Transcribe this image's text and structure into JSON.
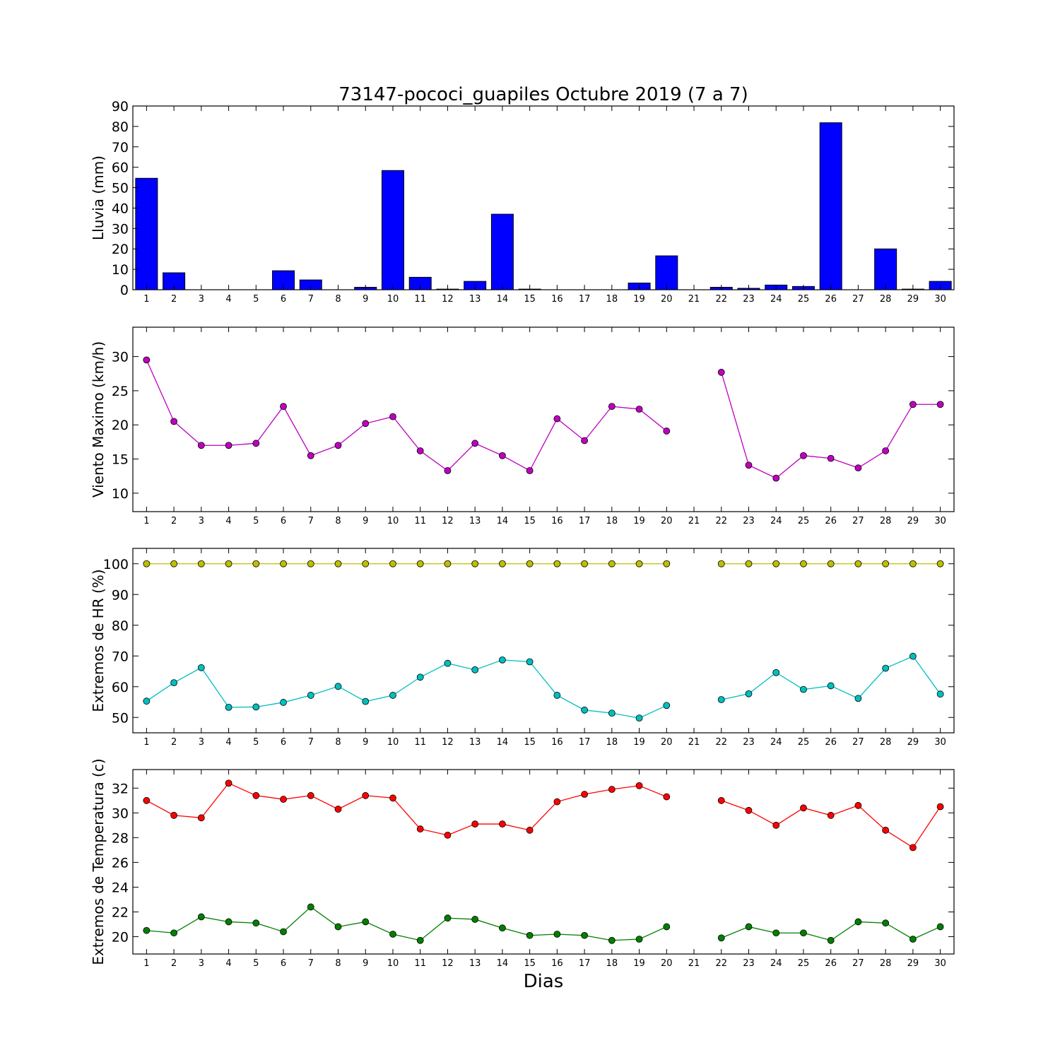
{
  "chart_data": [
    {
      "type": "bar",
      "title": "73147-pococi_guapiles Octubre 2019  (7 a 7)",
      "ylabel": "Lluvia (mm)",
      "xlabel": "",
      "x": [
        1,
        2,
        3,
        4,
        5,
        6,
        7,
        8,
        9,
        10,
        11,
        12,
        13,
        14,
        15,
        16,
        17,
        18,
        19,
        20,
        21,
        22,
        23,
        24,
        25,
        26,
        27,
        28,
        29,
        30
      ],
      "xlim": [
        0.5,
        30.5
      ],
      "ylim": [
        0,
        90
      ],
      "yticks": [
        0,
        10,
        20,
        30,
        40,
        50,
        60,
        70,
        80,
        90
      ],
      "color": "#0000ff",
      "series": [
        {
          "values": [
            54.6,
            8.3,
            0,
            0,
            0,
            9.3,
            4.8,
            0,
            1.2,
            58.4,
            6.1,
            0.3,
            4.1,
            37,
            0.3,
            0,
            0,
            0,
            3.3,
            16.6,
            null,
            1.2,
            0.7,
            2.3,
            1.6,
            81.8,
            0,
            20,
            0.3,
            4.1
          ]
        }
      ]
    },
    {
      "type": "line",
      "title": "",
      "ylabel": "Viento Maximo (km/h)",
      "xlabel": "",
      "x": [
        1,
        2,
        3,
        4,
        5,
        6,
        7,
        8,
        9,
        10,
        11,
        12,
        13,
        14,
        15,
        16,
        17,
        18,
        19,
        20,
        21,
        22,
        23,
        24,
        25,
        26,
        27,
        28,
        29,
        30
      ],
      "xlim": [
        0.5,
        30.5
      ],
      "ylim": [
        7.3,
        34.3
      ],
      "yticks": [
        10,
        15,
        20,
        25,
        30
      ],
      "series": [
        {
          "color": "#bf00bf",
          "values": [
            29.5,
            20.5,
            17,
            17,
            17.3,
            22.7,
            15.5,
            17,
            20.2,
            21.2,
            16.2,
            13.3,
            17.3,
            15.5,
            13.3,
            20.9,
            17.7,
            22.7,
            22.3,
            19.1,
            null,
            27.7,
            14.1,
            12.2,
            15.5,
            15.1,
            13.7,
            16.2,
            23,
            23
          ]
        }
      ]
    },
    {
      "type": "line",
      "title": "",
      "ylabel": "Extremos de HR (%)",
      "xlabel": "",
      "x": [
        1,
        2,
        3,
        4,
        5,
        6,
        7,
        8,
        9,
        10,
        11,
        12,
        13,
        14,
        15,
        16,
        17,
        18,
        19,
        20,
        21,
        22,
        23,
        24,
        25,
        26,
        27,
        28,
        29,
        30
      ],
      "xlim": [
        0.5,
        30.5
      ],
      "ylim": [
        45,
        105
      ],
      "yticks": [
        50,
        60,
        70,
        80,
        90,
        100
      ],
      "series": [
        {
          "color": "#bfbf00",
          "values": [
            100,
            100,
            100,
            100,
            100,
            100,
            100,
            100,
            100,
            100,
            100,
            100,
            100,
            100,
            100,
            100,
            100,
            100,
            100,
            100,
            null,
            100,
            100,
            100,
            100,
            100,
            100,
            100,
            100,
            100
          ]
        },
        {
          "color": "#00bfbf",
          "values": [
            55.3,
            61.3,
            66.2,
            53.3,
            53.4,
            54.9,
            57.2,
            60.1,
            55.2,
            57.2,
            63.1,
            67.6,
            65.5,
            68.7,
            68.1,
            57.2,
            52.4,
            51.4,
            49.8,
            53.9,
            null,
            55.8,
            57.7,
            64.6,
            59.1,
            60.3,
            56.2,
            66,
            69.9,
            57.6
          ]
        }
      ]
    },
    {
      "type": "line",
      "title": "",
      "ylabel": "Extremos de Temperatura (c)",
      "xlabel": "Dias",
      "x": [
        1,
        2,
        3,
        4,
        5,
        6,
        7,
        8,
        9,
        10,
        11,
        12,
        13,
        14,
        15,
        16,
        17,
        18,
        19,
        20,
        21,
        22,
        23,
        24,
        25,
        26,
        27,
        28,
        29,
        30
      ],
      "xlim": [
        0.5,
        30.5
      ],
      "ylim": [
        18.6,
        33.5
      ],
      "yticks": [
        20,
        22,
        24,
        26,
        28,
        30,
        32
      ],
      "series": [
        {
          "color": "#ff0000",
          "values": [
            31,
            29.8,
            29.6,
            32.4,
            31.4,
            31.1,
            31.4,
            30.3,
            31.4,
            31.2,
            28.7,
            28.2,
            29.1,
            29.1,
            28.6,
            30.9,
            31.5,
            31.9,
            32.2,
            31.3,
            null,
            31,
            30.2,
            29,
            30.4,
            29.8,
            30.6,
            28.6,
            27.2,
            30.5
          ]
        },
        {
          "color": "#007f00",
          "values": [
            20.5,
            20.3,
            21.6,
            21.2,
            21.1,
            20.4,
            22.4,
            20.8,
            21.2,
            20.2,
            19.7,
            21.5,
            21.4,
            20.7,
            20.1,
            20.2,
            20.1,
            19.7,
            19.8,
            20.8,
            null,
            19.9,
            20.8,
            20.3,
            20.3,
            19.7,
            21.2,
            21.1,
            19.8,
            20.8
          ]
        }
      ]
    }
  ]
}
